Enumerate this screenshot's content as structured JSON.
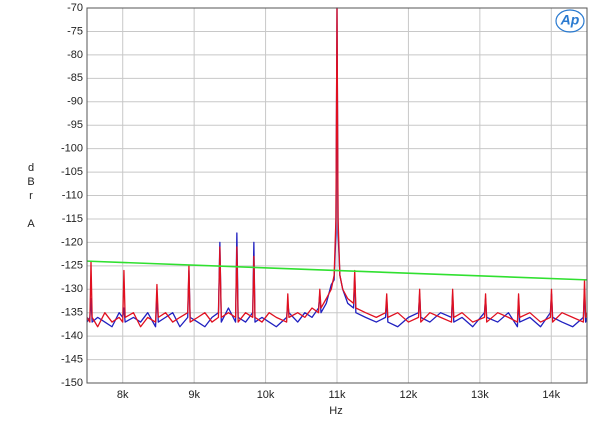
{
  "chart_data": {
    "type": "line",
    "xlabel": "Hz",
    "ylabel": [
      "d",
      "B",
      "r",
      "A"
    ],
    "logo": "Ap",
    "xlim": [
      7500,
      14500
    ],
    "xticks": [
      {
        "value": 8000,
        "label": "8k"
      },
      {
        "value": 9000,
        "label": "9k"
      },
      {
        "value": 10000,
        "label": "10k"
      },
      {
        "value": 11000,
        "label": "11k"
      },
      {
        "value": 12000,
        "label": "12k"
      },
      {
        "value": 13000,
        "label": "13k"
      },
      {
        "value": 14000,
        "label": "14k"
      }
    ],
    "ylim": [
      -150,
      -70
    ],
    "yticks": [
      -150,
      -145,
      -140,
      -135,
      -130,
      -125,
      -120,
      -115,
      -110,
      -105,
      -100,
      -95,
      -90,
      -85,
      -80,
      -75,
      -70
    ],
    "grid": true,
    "x": [
      7500,
      7540,
      7556,
      7572,
      7650,
      7750,
      7850,
      7950,
      8000,
      8017,
      8034,
      8150,
      8250,
      8350,
      8460,
      8479,
      8498,
      8600,
      8700,
      8800,
      8910,
      8927,
      8944,
      9050,
      9150,
      9250,
      9340,
      9360,
      9380,
      9480,
      9580,
      9598,
      9616,
      9720,
      9820,
      9836,
      9852,
      9950,
      10050,
      10150,
      10295,
      10311,
      10327,
      10450,
      10550,
      10650,
      10742,
      10759,
      10776,
      10850,
      10920,
      10960,
      10985,
      11000,
      11015,
      11040,
      11080,
      11150,
      11232,
      11248,
      11264,
      11400,
      11550,
      11680,
      11696,
      11712,
      11850,
      12000,
      12141,
      12157,
      12173,
      12300,
      12450,
      12603,
      12619,
      12635,
      12750,
      12900,
      13064,
      13080,
      13096,
      13250,
      13400,
      13526,
      13542,
      13558,
      13700,
      13850,
      13987,
      14003,
      14019,
      14150,
      14300,
      14449,
      14465,
      14481,
      14500
    ],
    "series": [
      {
        "color": "#2020c0",
        "values": [
          -137,
          -136,
          -132,
          -137,
          -136,
          -137,
          -138,
          -135,
          -136,
          -134,
          -137,
          -136,
          -137,
          -135,
          -138,
          -131,
          -137,
          -136,
          -135,
          -138,
          -136,
          -126,
          -136,
          -137,
          -138,
          -136,
          -135,
          -120,
          -137,
          -134,
          -137,
          -118,
          -136,
          -137,
          -135,
          -120,
          -137,
          -136,
          -137,
          -138,
          -136,
          -133,
          -135,
          -137,
          -135,
          -136,
          -134,
          -131,
          -135,
          -133,
          -129,
          -128,
          -118,
          -70,
          -118,
          -127,
          -130,
          -133,
          -134,
          -127,
          -135,
          -136,
          -137,
          -136,
          -132,
          -137,
          -138,
          -136,
          -135,
          -131,
          -136,
          -137,
          -135,
          -136,
          -131,
          -137,
          -136,
          -138,
          -135,
          -132,
          -136,
          -137,
          -135,
          -138,
          -132,
          -137,
          -136,
          -138,
          -135,
          -131,
          -136,
          -137,
          -138,
          -136,
          -130,
          -137,
          -136
        ]
      },
      {
        "color": "#e01020",
        "values": [
          -136,
          -137,
          -124,
          -136,
          -138,
          -135,
          -137,
          -136,
          -137,
          -126,
          -136,
          -135,
          -138,
          -136,
          -137,
          -129,
          -136,
          -135,
          -137,
          -136,
          -135,
          -125,
          -137,
          -136,
          -135,
          -137,
          -136,
          -121,
          -136,
          -135,
          -136,
          -121,
          -137,
          -135,
          -136,
          -123,
          -136,
          -137,
          -135,
          -136,
          -137,
          -131,
          -136,
          -135,
          -136,
          -134,
          -135,
          -130,
          -134,
          -132,
          -130,
          -127,
          -115,
          -70,
          -115,
          -127,
          -130,
          -132,
          -133,
          -126,
          -134,
          -135,
          -136,
          -135,
          -131,
          -136,
          -135,
          -137,
          -136,
          -130,
          -137,
          -135,
          -136,
          -137,
          -130,
          -136,
          -135,
          -137,
          -136,
          -131,
          -137,
          -135,
          -136,
          -137,
          -131,
          -136,
          -135,
          -137,
          -136,
          -130,
          -137,
          -135,
          -136,
          -137,
          -128,
          -136,
          -135
        ]
      },
      {
        "color": "#30e030",
        "x": [
          7500,
          14500
        ],
        "values": [
          -124,
          -128
        ]
      }
    ]
  }
}
